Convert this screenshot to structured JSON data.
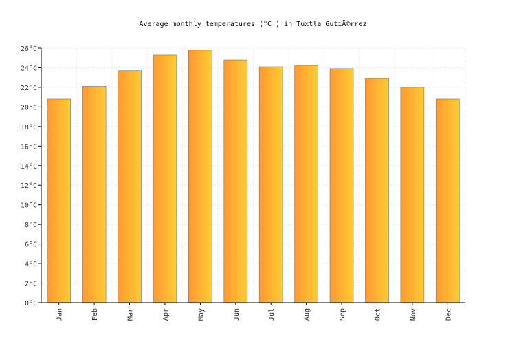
{
  "chart_data": {
    "type": "bar",
    "title": "Average monthly temperatures (°C ) in Tuxtla GutiÃ©rrez",
    "categories": [
      "Jan",
      "Feb",
      "Mar",
      "Apr",
      "May",
      "Jun",
      "Jul",
      "Aug",
      "Sep",
      "Oct",
      "Nov",
      "Dec"
    ],
    "values": [
      20.8,
      22.1,
      23.7,
      25.3,
      25.8,
      24.8,
      24.1,
      24.2,
      23.9,
      22.9,
      22.0,
      20.8
    ],
    "ylim": [
      0,
      26
    ],
    "yticks": [
      0,
      2,
      4,
      6,
      8,
      10,
      12,
      14,
      16,
      18,
      20,
      22,
      24,
      26
    ],
    "ytick_suffix": "°C",
    "xlabel": "",
    "ylabel": "",
    "grid": true,
    "colors": {
      "bar_left": "#ff9933",
      "bar_right": "#ffcc33",
      "bar_stroke": "#888888"
    }
  }
}
